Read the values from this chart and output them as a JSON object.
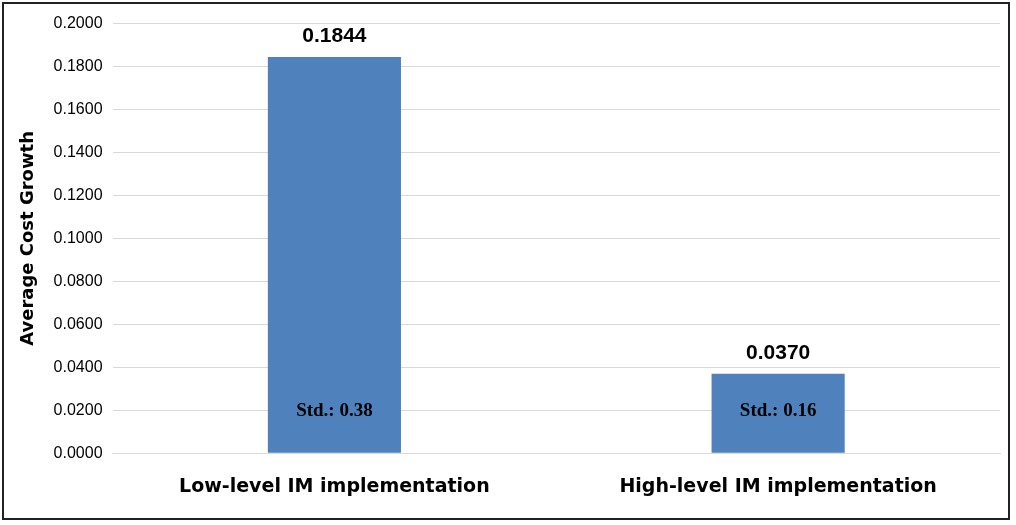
{
  "chart_data": {
    "type": "bar",
    "ylabel": "Average Cost Growth",
    "categories": [
      "Low-level IM implementation",
      "High-level IM implementation"
    ],
    "values": [
      0.1844,
      0.037
    ],
    "color": "#4f81bd",
    "data_labels": true,
    "value_labels": [
      "0.1844",
      "0.0370"
    ],
    "ylim": [
      0,
      0.2
    ],
    "yticks": [
      {
        "value": 0,
        "label": "0.0000"
      },
      {
        "value": 0.02,
        "label": "0.0200"
      },
      {
        "value": 0.04,
        "label": "0.0400"
      },
      {
        "value": 0.06,
        "label": "0.0600"
      },
      {
        "value": 0.08,
        "label": "0.0800"
      },
      {
        "value": 0.1,
        "label": "0.1000"
      },
      {
        "value": 0.12,
        "label": "0.1200"
      },
      {
        "value": 0.14,
        "label": "0.1400"
      },
      {
        "value": 0.16,
        "label": "0.1600"
      },
      {
        "value": 0.18,
        "label": "0.1800"
      },
      {
        "value": 0.2,
        "label": "0.2000"
      }
    ],
    "grid": "y",
    "annotations": [
      "Std.: 0.38",
      "Std.: 0.16"
    ]
  }
}
